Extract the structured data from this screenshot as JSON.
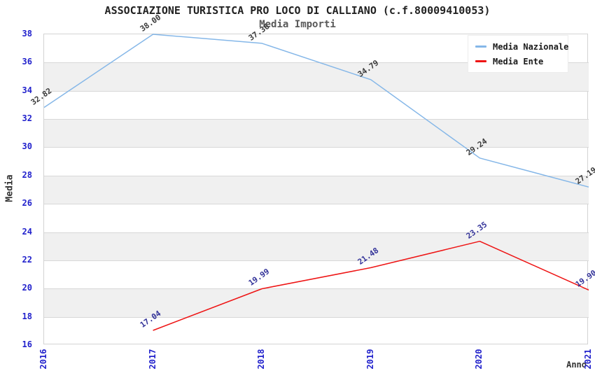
{
  "chart_data": {
    "type": "line",
    "title": "ASSOCIAZIONE TURISTICA PRO LOCO DI CALLIANO (c.f.80009410053)",
    "subtitle": "Media Importi",
    "xlabel": "Anno",
    "ylabel": "Media",
    "x_categories": [
      2016,
      2017,
      2018,
      2019,
      2020,
      2021
    ],
    "xlim": [
      2016,
      2021
    ],
    "ylim": [
      16,
      38
    ],
    "ytick_step": 2,
    "grid": "horizontal-bands",
    "legend_position": "top-right",
    "series": [
      {
        "name": "Media Nazionale",
        "color": "#85b7e8",
        "label_color": "#3a3a3a",
        "x": [
          2016,
          2017,
          2018,
          2019,
          2020,
          2021
        ],
        "values": [
          32.82,
          38.0,
          37.36,
          34.79,
          29.24,
          27.19
        ]
      },
      {
        "name": "Media Ente",
        "color": "#ee1414",
        "label_color": "#333399",
        "x": [
          2017,
          2018,
          2019,
          2020,
          2021
        ],
        "values": [
          17.04,
          19.99,
          21.48,
          23.35,
          19.9
        ]
      }
    ],
    "colors": {
      "tick_label": "#2222cc",
      "band_fill": "#f0f0f0",
      "grid_line": "#d8d8d8",
      "plot_border": "#d3d3d3",
      "title_text": "#222222",
      "subtitle_text": "#595959"
    }
  }
}
